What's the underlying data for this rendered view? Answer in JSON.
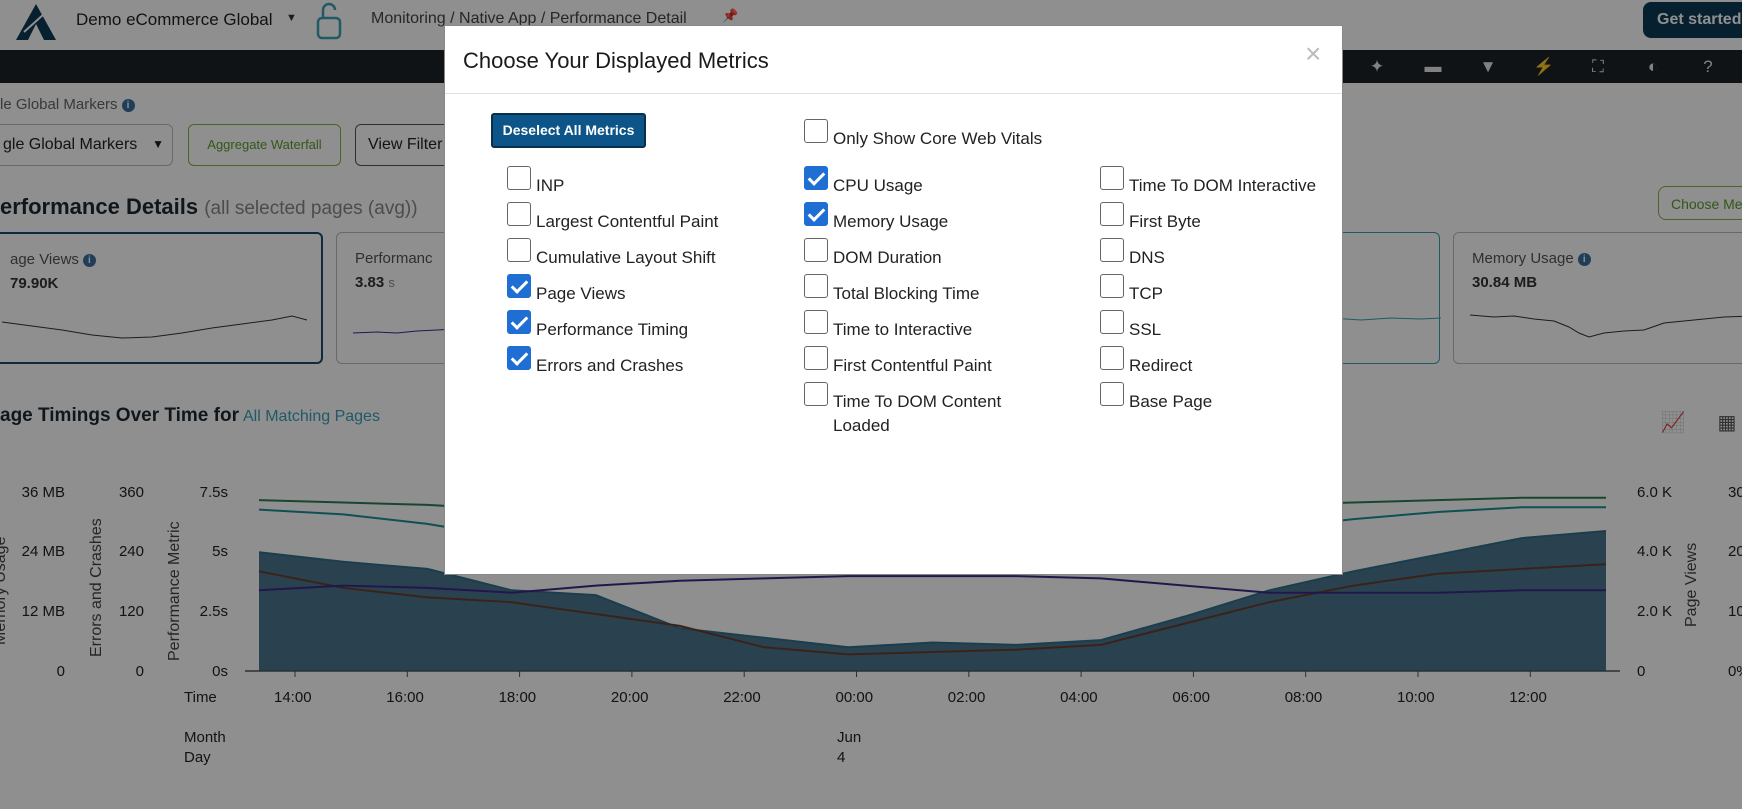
{
  "header": {
    "org_name": "Demo eCommerce Global",
    "breadcrumb": "Monitoring / Native App / Performance Detail",
    "get_started": "Get started"
  },
  "toolbar": {
    "icons": [
      "sparkle-icon",
      "comment-icon",
      "filter-icon",
      "bolt-icon",
      "fullscreen-icon",
      "contrast-icon",
      "help-icon"
    ]
  },
  "markers": {
    "label": "le Global Markers",
    "select_value": "gle Global Markers",
    "aggregate_waterfall": "Aggregate Waterfall",
    "view_filters": "View Filter"
  },
  "performance": {
    "title": "erformance Details",
    "subtitle": "(all selected pages (avg))",
    "choose_button": "Choose Me",
    "cards": [
      {
        "title": "age Views",
        "value": "79.90K",
        "unit": ""
      },
      {
        "title": "Performanc",
        "value": "3.83",
        "unit": "s"
      },
      {
        "title": "Memory Usage",
        "value": "30.84 MB",
        "unit": ""
      }
    ]
  },
  "chart_section": {
    "title": "age Timings Over Time for",
    "link": "All Matching Pages"
  },
  "chart_data": {
    "type": "area",
    "axes": {
      "memory_usage": {
        "label": "Memory Usage",
        "ticks": [
          "36 MB",
          "24 MB",
          "12 MB",
          "0"
        ]
      },
      "errors_and_crashes": {
        "label": "Errors and Crashes",
        "ticks": [
          "360",
          "240",
          "120",
          "0"
        ]
      },
      "performance_metric": {
        "label": "Performance Metric",
        "ticks": [
          "7.5s",
          "5s",
          "2.5s",
          "0s"
        ]
      },
      "page_views": {
        "label": "Page Views",
        "ticks": [
          "6.0 K",
          "4.0 K",
          "2.0 K",
          "0"
        ]
      },
      "right_percent": {
        "ticks": [
          "30",
          "20",
          "10",
          "0%"
        ]
      }
    },
    "x_label_time": "Time",
    "x_label_date": [
      "Month",
      "Day"
    ],
    "x_ticks": [
      "14:00",
      "16:00",
      "18:00",
      "20:00",
      "22:00",
      "00:00",
      "02:00",
      "04:00",
      "06:00",
      "08:00",
      "10:00",
      "12:00"
    ],
    "date_marker": [
      "Jun",
      "4"
    ],
    "series": [
      {
        "color": "#2f6f8a",
        "values": [
          5.0,
          4.6,
          4.3,
          3.4,
          3.2,
          1.8,
          1.4,
          1.0,
          1.2,
          1.1,
          1.3,
          2.3,
          3.4,
          4.2,
          4.9,
          5.6,
          5.9
        ]
      },
      {
        "color": "#6a3e2e",
        "values": [
          4.2,
          3.5,
          3.1,
          2.9,
          2.4,
          1.9,
          1.0,
          0.7,
          0.8,
          0.9,
          1.1,
          2.0,
          2.9,
          3.6,
          4.1,
          4.3,
          4.5
        ]
      },
      {
        "color": "#3d2a8a",
        "values": [
          3.4,
          3.6,
          3.5,
          3.3,
          3.6,
          3.8,
          3.9,
          4.0,
          4.0,
          4.0,
          3.9,
          3.6,
          3.3,
          3.3,
          3.3,
          3.4,
          3.4
        ]
      },
      {
        "color": "#1c8f94",
        "values": [
          6.8,
          6.6,
          6.2,
          5.6,
          4.9,
          4.6,
          4.5,
          4.4,
          4.4,
          4.5,
          4.6,
          5.2,
          6.0,
          6.4,
          6.7,
          6.9,
          6.9
        ]
      },
      {
        "color": "#2e7d55",
        "values": [
          7.2,
          7.1,
          7.0,
          6.8,
          6.6,
          6.5,
          6.4,
          6.4,
          6.4,
          6.5,
          6.6,
          6.8,
          7.0,
          7.1,
          7.2,
          7.3,
          7.3
        ]
      }
    ]
  },
  "modal": {
    "title": "Choose Your Displayed Metrics",
    "close": "×",
    "deselect_all": "Deselect All Metrics",
    "core_web_vitals": {
      "label": "Only Show Core Web Vitals",
      "checked": false
    },
    "columns": [
      [
        {
          "label": "INP",
          "checked": false
        },
        {
          "label": "Largest Contentful Paint",
          "checked": false
        },
        {
          "label": "Cumulative Layout Shift",
          "checked": false
        },
        {
          "label": "Page Views",
          "checked": true
        },
        {
          "label": "Performance Timing",
          "checked": true
        },
        {
          "label": "Errors and Crashes",
          "checked": true
        }
      ],
      [
        {
          "label": "CPU Usage",
          "checked": true
        },
        {
          "label": "Memory Usage",
          "checked": true
        },
        {
          "label": "DOM Duration",
          "checked": false
        },
        {
          "label": "Total Blocking Time",
          "checked": false
        },
        {
          "label": "Time to Interactive",
          "checked": false
        },
        {
          "label": "First Contentful Paint",
          "checked": false
        },
        {
          "label": "Time To DOM Content Loaded",
          "checked": false
        }
      ],
      [
        {
          "label": "Time To DOM Interactive",
          "checked": false
        },
        {
          "label": "First Byte",
          "checked": false
        },
        {
          "label": "DNS",
          "checked": false
        },
        {
          "label": "TCP",
          "checked": false
        },
        {
          "label": "SSL",
          "checked": false
        },
        {
          "label": "Redirect",
          "checked": false
        },
        {
          "label": "Base Page",
          "checked": false
        }
      ]
    ]
  }
}
